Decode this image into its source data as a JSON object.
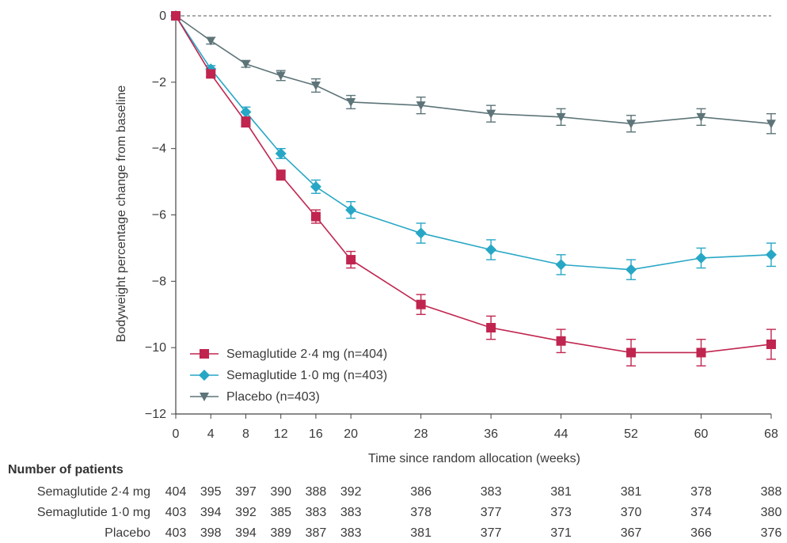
{
  "chart_data": {
    "type": "line",
    "xlabel": "Time since random allocation (weeks)",
    "ylabel": "Bodyweight percentage change from baseline",
    "x": [
      0,
      4,
      8,
      12,
      16,
      20,
      28,
      36,
      44,
      52,
      60,
      68
    ],
    "x_ticks": [
      0,
      4,
      8,
      12,
      16,
      20,
      28,
      36,
      44,
      52,
      60,
      68
    ],
    "y_ticks": [
      0,
      -2,
      -4,
      -6,
      -8,
      -10,
      -12
    ],
    "ylim": [
      -12,
      0
    ],
    "xlim": [
      0,
      68
    ],
    "reference_line": {
      "y": 0,
      "style": "dashed"
    },
    "legend_position": "bottom-left",
    "series": [
      {
        "name": "Semaglutide 2·4 mg (n=404)",
        "color": "#c0254f",
        "marker": "square",
        "values": [
          0,
          -1.75,
          -3.2,
          -4.8,
          -6.05,
          -7.35,
          -8.7,
          -9.4,
          -9.8,
          -10.15,
          -10.15,
          -9.9
        ],
        "error": [
          0,
          0.1,
          0.15,
          0.15,
          0.2,
          0.25,
          0.3,
          0.35,
          0.35,
          0.4,
          0.4,
          0.45
        ]
      },
      {
        "name": "Semaglutide 1·0 mg (n=403)",
        "color": "#27a7c5",
        "marker": "diamond",
        "values": [
          0,
          -1.6,
          -2.9,
          -4.15,
          -5.15,
          -5.85,
          -6.55,
          -7.05,
          -7.5,
          -7.65,
          -7.3,
          -7.2
        ],
        "error": [
          0,
          0.1,
          0.15,
          0.15,
          0.2,
          0.25,
          0.3,
          0.3,
          0.3,
          0.3,
          0.3,
          0.35
        ]
      },
      {
        "name": "Placebo (n=403)",
        "color": "#5d7478",
        "marker": "triangle-down",
        "values": [
          0,
          -0.75,
          -1.45,
          -1.8,
          -2.1,
          -2.6,
          -2.7,
          -2.95,
          -3.05,
          -3.25,
          -3.05,
          -3.25
        ],
        "error": [
          0,
          0.1,
          0.1,
          0.15,
          0.2,
          0.2,
          0.25,
          0.25,
          0.25,
          0.25,
          0.25,
          0.3
        ]
      }
    ]
  },
  "patients": {
    "title": "Number of patients",
    "rows": [
      {
        "label": "Semaglutide 2·4 mg",
        "values": [
          "404",
          "395",
          "397",
          "390",
          "388",
          "392",
          "386",
          "383",
          "381",
          "381",
          "378",
          "388"
        ]
      },
      {
        "label": "Semaglutide 1·0 mg",
        "values": [
          "403",
          "394",
          "392",
          "385",
          "383",
          "383",
          "378",
          "377",
          "373",
          "370",
          "374",
          "380"
        ]
      },
      {
        "label": "Placebo",
        "values": [
          "403",
          "398",
          "394",
          "389",
          "387",
          "383",
          "381",
          "377",
          "371",
          "367",
          "366",
          "376"
        ]
      }
    ]
  }
}
